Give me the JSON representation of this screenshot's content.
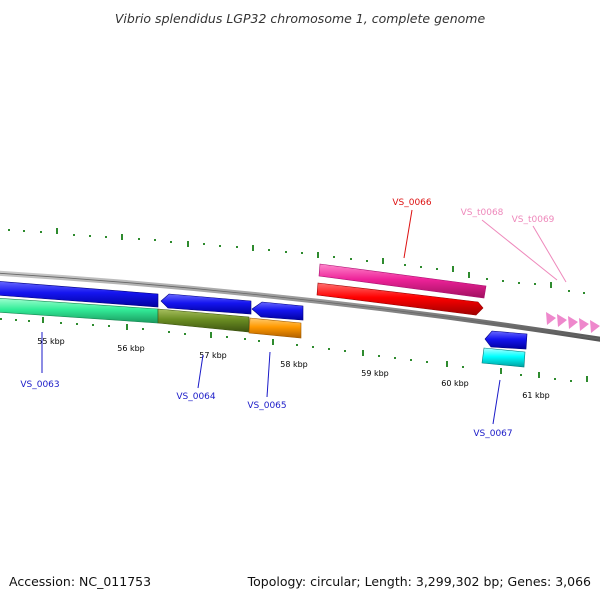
{
  "title": "Vibrio splendidus LGP32 chromosome 1, complete genome",
  "footer": {
    "accession": "Accession: NC_011753",
    "summary": "Topology: circular; Length: 3,299,302 bp; Genes: 3,066"
  },
  "kbp_labels": [
    "55 kbp",
    "56 kbp",
    "57 kbp",
    "58 kbp",
    "59 kbp",
    "60 kbp",
    "61 kbp"
  ],
  "genes": [
    {
      "id": "VS_0063",
      "color": "#1a1ac8"
    },
    {
      "id": "VS_0064",
      "color": "#1a1ac8"
    },
    {
      "id": "VS_0065",
      "color": "#1a1ac8"
    },
    {
      "id": "VS_0066",
      "color": "#dd1111"
    },
    {
      "id": "VS_0067",
      "color": "#1a1ac8"
    },
    {
      "id": "VS_t0068",
      "color": "#ee88bb"
    },
    {
      "id": "VS_t0069",
      "color": "#ee88bb"
    }
  ],
  "colors": {
    "backbone": "#8c8c8c",
    "tick": "#2e8b2e",
    "cds_blue": "#1010ee",
    "cds_red": "#ff0000",
    "misc_pink": "#ee2299",
    "trna_pink": "#ee88cc",
    "seafoam": "#33ee99",
    "olive": "#6b8e23",
    "orange": "#ff9900",
    "cyan": "#00ffff"
  }
}
